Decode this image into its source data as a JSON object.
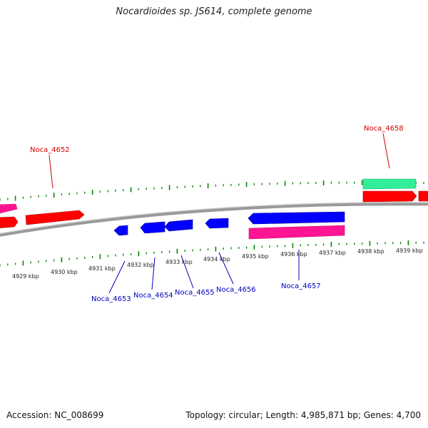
{
  "title": "Nocardioides sp. JS614, complete genome",
  "footer": {
    "accession": "Accession: NC_008699",
    "topology": "Topology: circular; Length: 4,985,871 bp; Genes: 4,700"
  },
  "colors": {
    "forward_gene": "#ff0000",
    "reverse_gene": "#0000ff",
    "rrna_gene": "#ff1493",
    "trna_gene": "#33ee99",
    "backbone": "#888888",
    "tick": "#008800",
    "top_label": "#d00000",
    "bottom_label": "#0000c0"
  },
  "scale_labels": [
    "4929 kbp",
    "4930 kbp",
    "4931 kbp",
    "4932 kbp",
    "4933 kbp",
    "4934 kbp",
    "4935 kbp",
    "4936 kbp",
    "4937 kbp",
    "4938 kbp",
    "4939 kbp"
  ],
  "gene_labels_top": [
    "Noca_4652",
    "Noca_4658"
  ],
  "gene_labels_bottom": [
    "Noca_4653",
    "Noca_4654",
    "Noca_4655",
    "Noca_4656",
    "Noca_4657"
  ]
}
